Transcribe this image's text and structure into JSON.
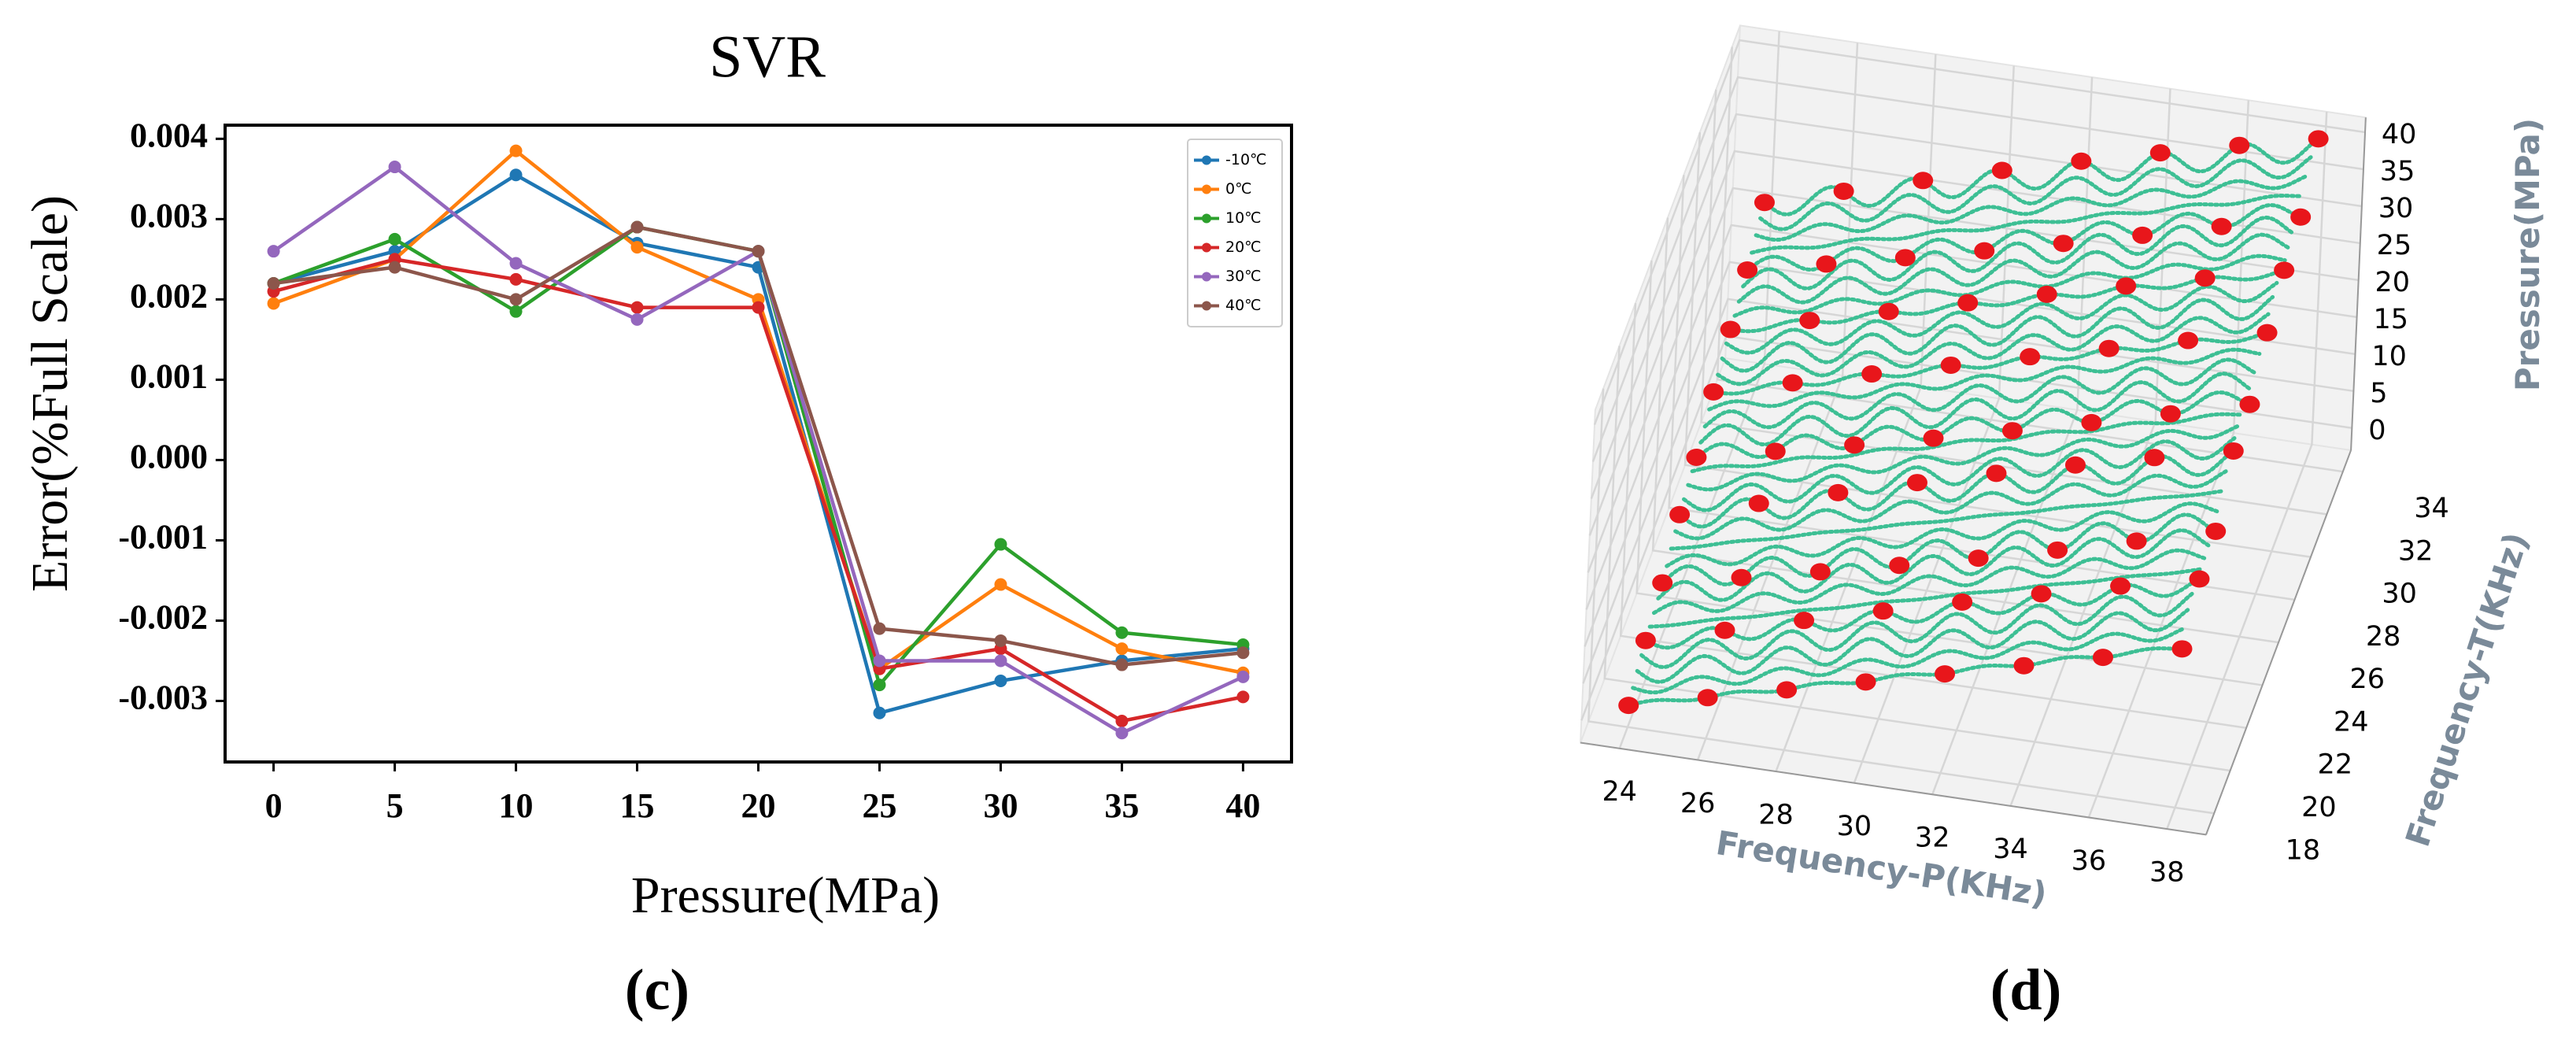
{
  "chart_data": [
    {
      "type": "line",
      "title": "SVR",
      "caption": "(c)",
      "xlabel": "Pressure(MPa)",
      "ylabel": "Error(%Full Scale)",
      "x": [
        0,
        5,
        10,
        15,
        20,
        25,
        30,
        35,
        40
      ],
      "series": [
        {
          "name": "-10℃",
          "color": "#1f77b4",
          "values": [
            0.0022,
            0.0026,
            0.00355,
            0.0027,
            0.0024,
            -0.00315,
            -0.00275,
            -0.0025,
            -0.00235
          ]
        },
        {
          "name": "0℃",
          "color": "#ff7f0e",
          "values": [
            0.00195,
            0.0025,
            0.00385,
            0.00265,
            0.002,
            -0.0026,
            -0.00155,
            -0.00235,
            -0.00265
          ]
        },
        {
          "name": "10℃",
          "color": "#2ca02c",
          "values": [
            0.0022,
            0.00275,
            0.00185,
            0.0029,
            0.0026,
            -0.0028,
            -0.00105,
            -0.00215,
            -0.0023
          ]
        },
        {
          "name": "20℃",
          "color": "#d62728",
          "values": [
            0.0021,
            0.0025,
            0.00225,
            0.0019,
            0.0019,
            -0.0026,
            -0.00235,
            -0.00325,
            -0.00295
          ]
        },
        {
          "name": "30℃",
          "color": "#9467bd",
          "values": [
            0.0026,
            0.00365,
            0.00245,
            0.00175,
            0.0026,
            -0.0025,
            -0.0025,
            -0.0034,
            -0.0027
          ]
        },
        {
          "name": "40℃",
          "color": "#8c564b",
          "values": [
            0.0022,
            0.0024,
            0.002,
            0.0029,
            0.0026,
            -0.0021,
            -0.00225,
            -0.00255,
            -0.0024
          ]
        }
      ],
      "xlim": [
        -2,
        42
      ],
      "xticks": [
        0,
        5,
        10,
        15,
        20,
        25,
        30,
        35,
        40
      ],
      "ylim": [
        -0.00376,
        0.00417
      ],
      "yticks": [
        -0.003,
        -0.002,
        -0.001,
        {
          "value": 0,
          "label": "0.000"
        },
        0.001,
        0.002,
        0.003,
        0.004
      ],
      "grid": false,
      "legend": "upper right"
    },
    {
      "type": "surface3d",
      "caption": "(d)",
      "xlabel": "Frequency-P(KHz)",
      "ylabel": "Frequency-T(KHz)",
      "zlabel": "Pressure(MPa)",
      "xlim": [
        23,
        39
      ],
      "xticks": [
        24,
        26,
        28,
        30,
        32,
        34,
        36,
        38
      ],
      "ylim": [
        17,
        35
      ],
      "yticks": [
        18,
        20,
        22,
        24,
        26,
        28,
        30,
        32,
        34
      ],
      "zlim": [
        -3,
        42
      ],
      "zticks": [
        0,
        5,
        10,
        15,
        20,
        25,
        30,
        35,
        40
      ],
      "grid": true,
      "surface_color": "#3dbf94",
      "point_color": "#e8161b"
    }
  ]
}
